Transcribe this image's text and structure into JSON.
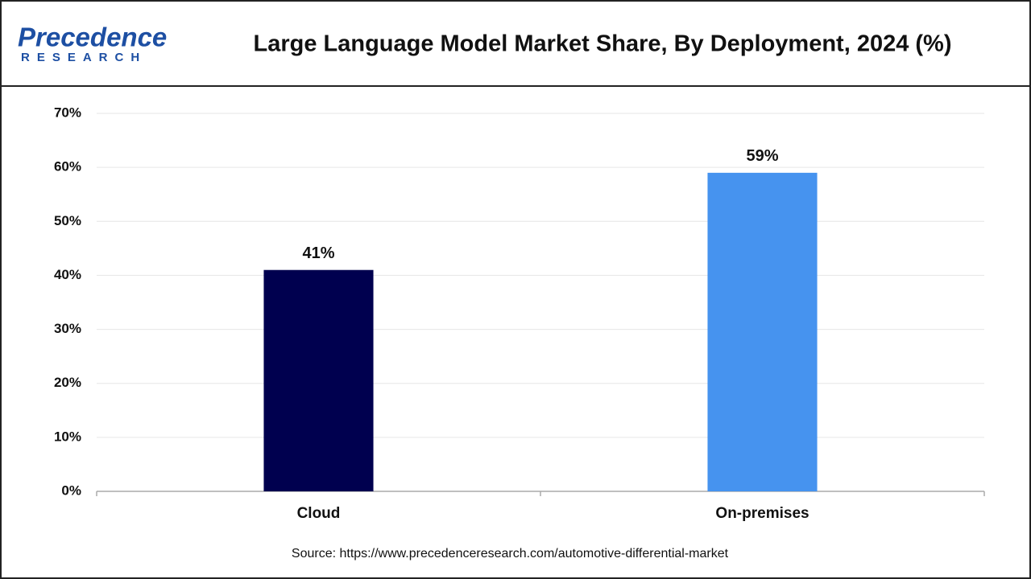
{
  "logo": {
    "name": "Precedence",
    "tagline": "RESEARCH"
  },
  "chart_data": {
    "type": "bar",
    "title": "Large Language Model Market Share, By Deployment, 2024 (%)",
    "categories": [
      "Cloud",
      "On-premises"
    ],
    "values": [
      41,
      59
    ],
    "value_labels": [
      "41%",
      "59%"
    ],
    "colors": [
      "#00004f",
      "#4693ef"
    ],
    "ylim": [
      0,
      70
    ],
    "yticks": [
      {
        "value": 0,
        "label": "0%"
      },
      {
        "value": 10,
        "label": "10%"
      },
      {
        "value": 20,
        "label": "20%"
      },
      {
        "value": 30,
        "label": "30%"
      },
      {
        "value": 40,
        "label": "40%"
      },
      {
        "value": 50,
        "label": "50%"
      },
      {
        "value": 60,
        "label": "60%"
      },
      {
        "value": 70,
        "label": "70%"
      }
    ],
    "grid": true,
    "source": "Source: https://www.precedenceresearch.com/automotive-differential-market"
  }
}
